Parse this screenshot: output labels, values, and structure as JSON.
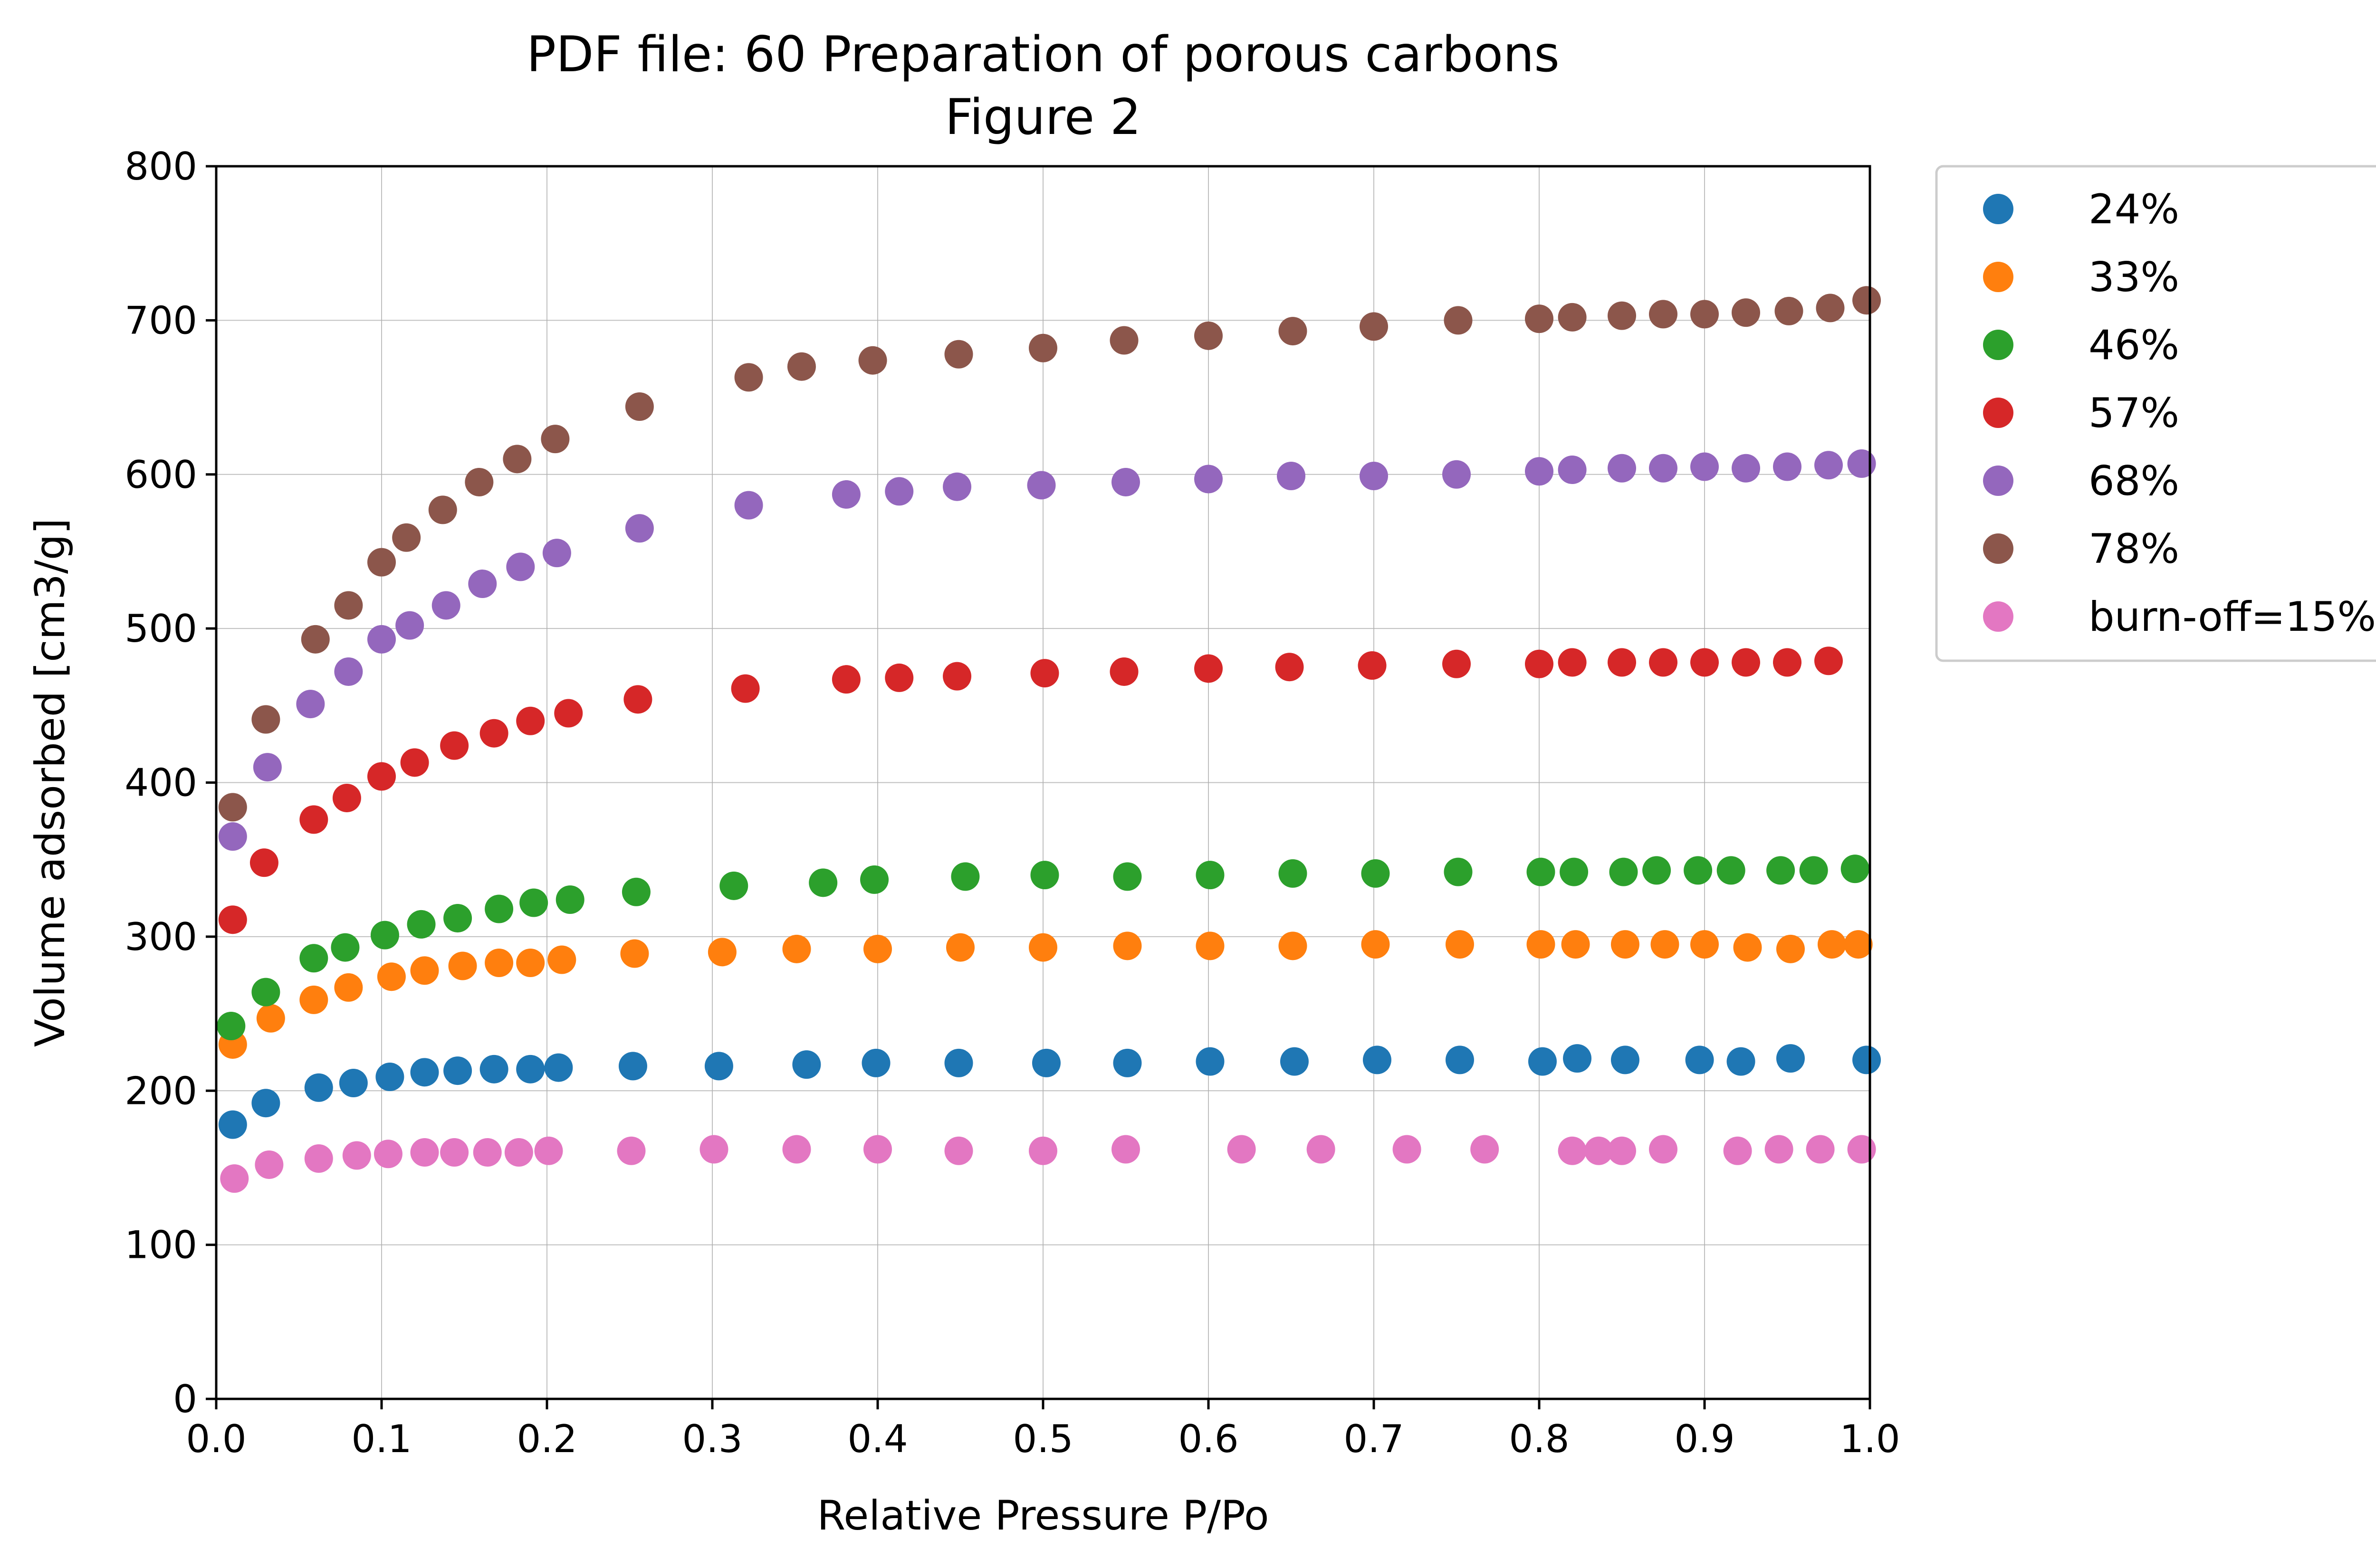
{
  "chart_data": {
    "type": "scatter",
    "title": "PDF file: 60 Preparation of porous carbons",
    "subtitle": "Figure 2",
    "xlabel": "Relative Pressure P/Po",
    "ylabel": "Volume adsorbed [cm3/g]",
    "xlim": [
      0.0,
      1.0
    ],
    "ylim": [
      0,
      800
    ],
    "xticks": [
      "0.0",
      "0.1",
      "0.2",
      "0.3",
      "0.4",
      "0.5",
      "0.6",
      "0.7",
      "0.8",
      "0.9",
      "1.0"
    ],
    "yticks": [
      "0",
      "100",
      "200",
      "300",
      "400",
      "500",
      "600",
      "700",
      "800"
    ],
    "grid": true,
    "legend_position": "outside-top-right",
    "series": [
      {
        "name": "24%",
        "color": "#1f77b4",
        "x": [
          0.01,
          0.03,
          0.062,
          0.083,
          0.105,
          0.126,
          0.146,
          0.168,
          0.19,
          0.207,
          0.252,
          0.304,
          0.357,
          0.399,
          0.449,
          0.502,
          0.551,
          0.601,
          0.652,
          0.702,
          0.752,
          0.802,
          0.823,
          0.852,
          0.897,
          0.922,
          0.952,
          0.998
        ],
        "y": [
          178,
          192,
          202,
          205,
          209,
          212,
          213,
          214,
          214,
          215,
          216,
          216,
          217,
          218,
          218,
          218,
          218,
          219,
          219,
          220,
          220,
          219,
          221,
          220,
          220,
          219,
          221,
          220
        ]
      },
      {
        "name": "33%",
        "color": "#ff7f0e",
        "x": [
          0.01,
          0.033,
          0.059,
          0.08,
          0.106,
          0.126,
          0.149,
          0.171,
          0.19,
          0.209,
          0.253,
          0.306,
          0.351,
          0.4,
          0.45,
          0.5,
          0.551,
          0.601,
          0.651,
          0.701,
          0.752,
          0.801,
          0.822,
          0.852,
          0.876,
          0.9,
          0.926,
          0.952,
          0.977,
          0.993
        ],
        "y": [
          230,
          247,
          259,
          267,
          274,
          278,
          281,
          283,
          283,
          285,
          289,
          290,
          292,
          292,
          293,
          293,
          294,
          294,
          294,
          295,
          295,
          295,
          295,
          295,
          295,
          295,
          293,
          292,
          295,
          295
        ]
      },
      {
        "name": "46%",
        "color": "#2ca02c",
        "x": [
          0.009,
          0.03,
          0.059,
          0.078,
          0.102,
          0.124,
          0.146,
          0.171,
          0.192,
          0.214,
          0.254,
          0.313,
          0.367,
          0.398,
          0.453,
          0.501,
          0.551,
          0.601,
          0.651,
          0.701,
          0.751,
          0.801,
          0.821,
          0.851,
          0.871,
          0.896,
          0.916,
          0.946,
          0.966,
          0.991
        ],
        "y": [
          242,
          264,
          286,
          293,
          301,
          308,
          312,
          318,
          322,
          324,
          329,
          333,
          335,
          337,
          339,
          340,
          339,
          340,
          341,
          341,
          342,
          342,
          342,
          342,
          343,
          343,
          343,
          343,
          343,
          344
        ]
      },
      {
        "name": "57%",
        "color": "#d62728",
        "x": [
          0.01,
          0.029,
          0.059,
          0.079,
          0.1,
          0.12,
          0.144,
          0.168,
          0.19,
          0.213,
          0.255,
          0.32,
          0.381,
          0.413,
          0.448,
          0.501,
          0.549,
          0.6,
          0.649,
          0.699,
          0.75,
          0.8,
          0.82,
          0.85,
          0.875,
          0.9,
          0.925,
          0.95,
          0.975
        ],
        "y": [
          311,
          348,
          376,
          390,
          404,
          413,
          424,
          432,
          440,
          445,
          454,
          461,
          467,
          468,
          469,
          471,
          472,
          474,
          475,
          476,
          477,
          477,
          478,
          478,
          478,
          478,
          478,
          478,
          479
        ]
      },
      {
        "name": "68%",
        "color": "#9467bd",
        "x": [
          0.01,
          0.031,
          0.057,
          0.08,
          0.1,
          0.117,
          0.139,
          0.161,
          0.184,
          0.206,
          0.256,
          0.322,
          0.381,
          0.413,
          0.448,
          0.499,
          0.55,
          0.6,
          0.65,
          0.7,
          0.75,
          0.8,
          0.82,
          0.85,
          0.875,
          0.9,
          0.925,
          0.95,
          0.975,
          0.995
        ],
        "y": [
          365,
          410,
          451,
          472,
          493,
          502,
          515,
          529,
          540,
          549,
          565,
          580,
          587,
          589,
          592,
          593,
          595,
          597,
          599,
          599,
          600,
          602,
          603,
          604,
          604,
          605,
          604,
          605,
          606,
          607
        ]
      },
      {
        "name": "78%",
        "color": "#8c564b",
        "x": [
          0.01,
          0.03,
          0.06,
          0.08,
          0.1,
          0.115,
          0.137,
          0.159,
          0.182,
          0.205,
          0.256,
          0.322,
          0.354,
          0.397,
          0.449,
          0.5,
          0.549,
          0.6,
          0.651,
          0.7,
          0.751,
          0.8,
          0.82,
          0.85,
          0.875,
          0.9,
          0.925,
          0.951,
          0.976,
          0.998
        ],
        "y": [
          384,
          441,
          493,
          515,
          543,
          559,
          577,
          595,
          610,
          623,
          644,
          663,
          670,
          674,
          678,
          682,
          687,
          690,
          693,
          696,
          700,
          701,
          702,
          703,
          704,
          704,
          705,
          706,
          708,
          713
        ]
      },
      {
        "name": "burn-off=15%",
        "color": "#e377c2",
        "x": [
          0.011,
          0.032,
          0.062,
          0.085,
          0.104,
          0.126,
          0.144,
          0.164,
          0.183,
          0.201,
          0.251,
          0.301,
          0.351,
          0.4,
          0.449,
          0.5,
          0.55,
          0.62,
          0.668,
          0.72,
          0.767,
          0.82,
          0.836,
          0.85,
          0.875,
          0.92,
          0.945,
          0.97,
          0.995
        ],
        "y": [
          143,
          152,
          156,
          158,
          159,
          160,
          160,
          160,
          160,
          161,
          161,
          162,
          162,
          162,
          161,
          161,
          162,
          162,
          162,
          162,
          162,
          161,
          161,
          161,
          162,
          161,
          162,
          162,
          162
        ]
      }
    ]
  }
}
